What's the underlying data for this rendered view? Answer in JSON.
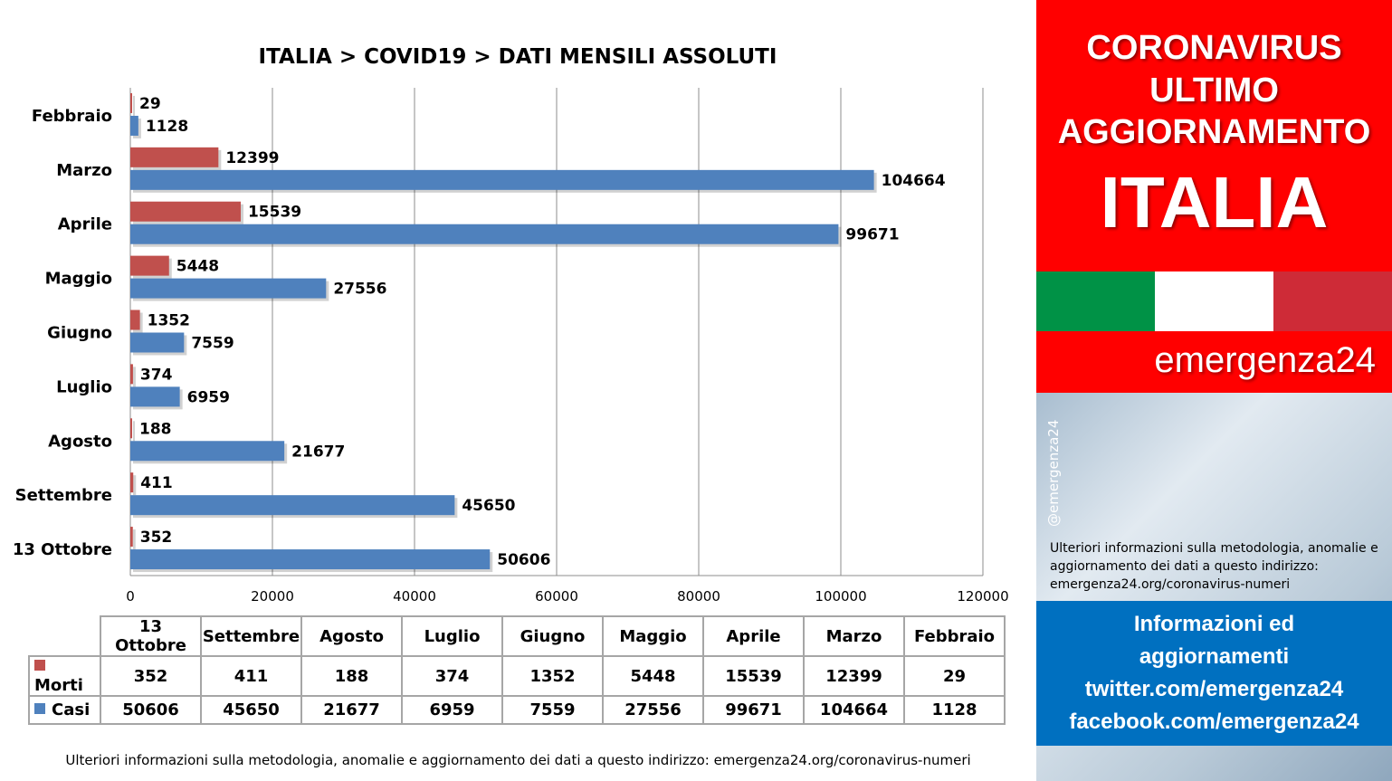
{
  "chart_data": {
    "type": "bar",
    "orientation": "horizontal",
    "title": "ITALIA >  COVID19 > DATI MENSILI  ASSOLUTI",
    "categories": [
      "Febbraio",
      "Marzo",
      "Aprile",
      "Maggio",
      "Giugno",
      "Luglio",
      "Agosto",
      "Settembre",
      "13 Ottobre"
    ],
    "series": [
      {
        "name": "Morti",
        "color": "#c0504d",
        "values": [
          29,
          12399,
          15539,
          5448,
          1352,
          374,
          188,
          411,
          352
        ]
      },
      {
        "name": "Casi",
        "color": "#4f81bd",
        "values": [
          1128,
          104664,
          99671,
          27556,
          7559,
          6959,
          21677,
          45650,
          50606
        ]
      }
    ],
    "xlim": [
      0,
      120000
    ],
    "xticks": [
      "0",
      "20000",
      "40000",
      "60000",
      "80000",
      "100000",
      "120000"
    ],
    "grid": true,
    "legend": "data table below chart",
    "table": {
      "columns": [
        "13 Ottobre",
        "Settembre",
        "Agosto",
        "Luglio",
        "Giugno",
        "Maggio",
        "Aprile",
        "Marzo",
        "Febbraio"
      ],
      "rows": [
        {
          "label": "Morti",
          "cells": [
            "352",
            "411",
            "188",
            "374",
            "1352",
            "5448",
            "15539",
            "12399",
            "29"
          ]
        },
        {
          "label": "Casi",
          "cells": [
            "50606",
            "45650",
            "21677",
            "6959",
            "7559",
            "27556",
            "99671",
            "104664",
            "1128"
          ]
        }
      ]
    }
  },
  "footer_note": "Ulteriori informazioni sulla metodologia, anomalie e aggiornamento dei dati a questo indirizzo: emergenza24.org/coronavirus-numeri",
  "side_panel": {
    "headline_1": "CORONAVIRUS",
    "headline_2": "ULTIMO",
    "headline_3": "AGGIORNAMENTO",
    "country": "ITALIA",
    "flag_colors": [
      "#009246",
      "#ffffff",
      "#ce2b37"
    ],
    "brand": "emergenza24",
    "handle": "@emergenza24",
    "note": "Ulteriori informazioni sulla metodologia, anomalie e aggiornamento dei dati a questo indirizzo: emergenza24.org/coronavirus-numeri",
    "info_1": "Informazioni ed",
    "info_2": "aggiornamenti",
    "info_3": "twitter.com/emergenza24",
    "info_4": "facebook.com/emergenza24"
  }
}
